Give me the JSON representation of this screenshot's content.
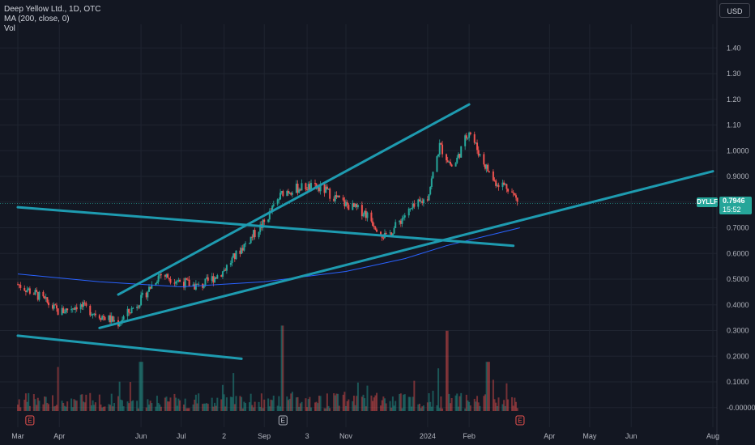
{
  "legend": {
    "symbol": "Deep Yellow Ltd., 1D, OTC",
    "ma": "MA (200, close, 0)",
    "vol": "Vol"
  },
  "currency": "USD",
  "ticker": "DYLLF",
  "last_price": "0.7946",
  "countdown": "15:52",
  "colors": {
    "background": "#131722",
    "up": "#26a69a",
    "down": "#ef5350",
    "ma": "#2962ff",
    "trendline": "#1e9bb0",
    "grid": "#1f2430"
  },
  "chart_data": {
    "type": "candlestick",
    "y_ticks": [
      "1.40",
      "1.30",
      "1.20",
      "1.10",
      "1.0000",
      "0.9000",
      "0.8000",
      "0.7000",
      "0.6000",
      "0.5000",
      "0.4000",
      "0.3000",
      "0.2000",
      "0.1000",
      "-0.000000"
    ],
    "x_ticks": [
      "Mar",
      "Apr",
      "Jun",
      "Jul",
      "2",
      "Sep",
      "3",
      "Nov",
      "2024",
      "Feb",
      "Apr",
      "May",
      "Jun",
      "Aug"
    ],
    "price_series": [
      [
        "2023-03-01",
        0.48
      ],
      [
        "2023-03-15",
        0.44
      ],
      [
        "2023-04-01",
        0.37
      ],
      [
        "2023-04-15",
        0.4
      ],
      [
        "2023-05-01",
        0.36
      ],
      [
        "2023-05-15",
        0.33
      ],
      [
        "2023-06-01",
        0.42
      ],
      [
        "2023-06-15",
        0.52
      ],
      [
        "2023-07-01",
        0.49
      ],
      [
        "2023-07-15",
        0.47
      ],
      [
        "2023-08-01",
        0.53
      ],
      [
        "2023-08-15",
        0.62
      ],
      [
        "2023-09-01",
        0.72
      ],
      [
        "2023-09-15",
        0.84
      ],
      [
        "2023-10-01",
        0.86
      ],
      [
        "2023-10-15",
        0.85
      ],
      [
        "2023-11-01",
        0.79
      ],
      [
        "2023-11-15",
        0.76
      ],
      [
        "2023-12-01",
        0.66
      ],
      [
        "2023-12-15",
        0.75
      ],
      [
        "2024-01-01",
        0.82
      ],
      [
        "2024-01-10",
        1.02
      ],
      [
        "2024-01-20",
        0.93
      ],
      [
        "2024-02-01",
        1.08
      ],
      [
        "2024-02-10",
        0.97
      ],
      [
        "2024-02-20",
        0.88
      ],
      [
        "2024-03-01",
        0.86
      ],
      [
        "2024-03-10",
        0.79
      ]
    ],
    "ma_series": [
      [
        "2023-03-01",
        0.52
      ],
      [
        "2023-05-01",
        0.49
      ],
      [
        "2023-07-01",
        0.47
      ],
      [
        "2023-09-01",
        0.49
      ],
      [
        "2023-11-01",
        0.53
      ],
      [
        "2023-12-15",
        0.58
      ],
      [
        "2024-01-15",
        0.63
      ],
      [
        "2024-03-10",
        0.7
      ]
    ],
    "volume_peaks": [
      [
        "2023-04-01",
        0.17
      ],
      [
        "2023-06-01",
        0.19
      ],
      [
        "2023-09-15",
        0.33
      ],
      [
        "2024-01-15",
        0.31
      ],
      [
        "2024-02-15",
        0.19
      ]
    ],
    "trendlines": [
      {
        "from": [
          "2023-05-15",
          0.44
        ],
        "to": [
          "2024-02-01",
          1.18
        ]
      },
      {
        "from": [
          "2023-05-01",
          0.31
        ],
        "to": [
          "2024-08-01",
          0.92
        ]
      },
      {
        "from": [
          "2023-03-01",
          0.78
        ],
        "to": [
          "2024-03-05",
          0.63
        ]
      },
      {
        "from": [
          "2023-03-01",
          0.28
        ],
        "to": [
          "2023-08-15",
          0.19
        ]
      }
    ]
  }
}
